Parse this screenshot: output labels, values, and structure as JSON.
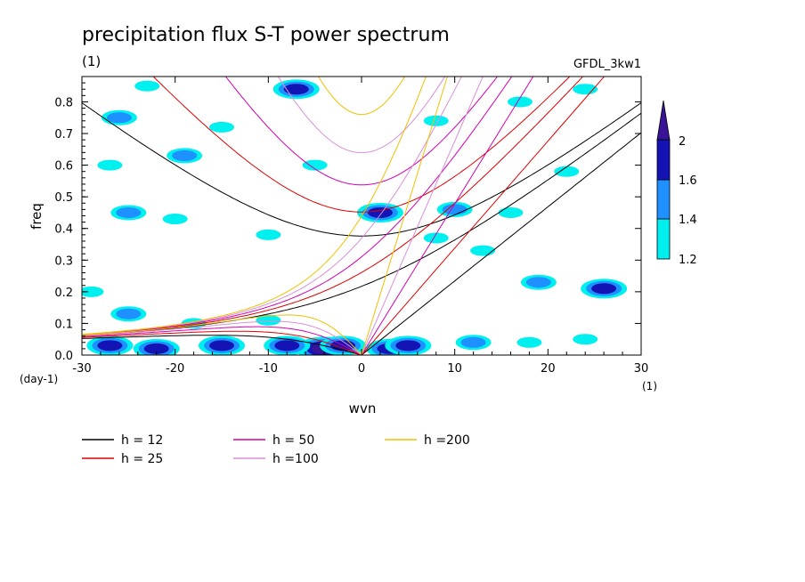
{
  "header": {
    "title": "precipitation flux S-T power spectrum",
    "unit_label": "(1)",
    "model": "GFDL_3kw1"
  },
  "chart_data": {
    "type": "heatmap",
    "title": "precipitation flux S-T power spectrum",
    "xlabel": "wvn",
    "ylabel": "freq",
    "x_unit": "(1)",
    "y_unit": "(day-1)",
    "xlim": [
      -30,
      30
    ],
    "ylim": [
      0,
      0.88
    ],
    "x_ticks": [
      -30,
      -20,
      -10,
      0,
      10,
      20,
      30
    ],
    "y_ticks": [
      0.0,
      0.1,
      0.2,
      0.3,
      0.4,
      0.5,
      0.6,
      0.7,
      0.8
    ],
    "x_tick_labels": [
      "-30",
      "-20",
      "-10",
      "0",
      "10",
      "20",
      "30"
    ],
    "y_tick_labels": [
      "0.0",
      "0.1",
      "0.2",
      "0.3",
      "0.4",
      "0.5",
      "0.6",
      "0.7",
      "0.8"
    ],
    "colorbar": {
      "levels": [
        1.2,
        1.4,
        1.6,
        2
      ],
      "labels": [
        "1.2",
        "1.4",
        "1.6",
        "2"
      ],
      "colors": [
        "#00f0f0",
        "#1e90ff",
        "#1414b4",
        "#3a1496"
      ]
    },
    "blobs": [
      {
        "x": -4,
        "y": 0.02,
        "v": 2.0
      },
      {
        "x": -2,
        "y": 0.03,
        "v": 1.8
      },
      {
        "x": 3,
        "y": 0.02,
        "v": 1.8
      },
      {
        "x": 5,
        "y": 0.03,
        "v": 1.6
      },
      {
        "x": -8,
        "y": 0.03,
        "v": 1.6
      },
      {
        "x": -15,
        "y": 0.03,
        "v": 1.6
      },
      {
        "x": -22,
        "y": 0.02,
        "v": 1.8
      },
      {
        "x": -27,
        "y": 0.03,
        "v": 1.6
      },
      {
        "x": 12,
        "y": 0.04,
        "v": 1.4
      },
      {
        "x": 18,
        "y": 0.04,
        "v": 1.3
      },
      {
        "x": 24,
        "y": 0.05,
        "v": 1.3
      },
      {
        "x": -25,
        "y": 0.13,
        "v": 1.4
      },
      {
        "x": -18,
        "y": 0.1,
        "v": 1.3
      },
      {
        "x": -10,
        "y": 0.11,
        "v": 1.3
      },
      {
        "x": 26,
        "y": 0.21,
        "v": 1.6
      },
      {
        "x": 19,
        "y": 0.23,
        "v": 1.4
      },
      {
        "x": -29,
        "y": 0.2,
        "v": 1.3
      },
      {
        "x": 13,
        "y": 0.33,
        "v": 1.3
      },
      {
        "x": 8,
        "y": 0.37,
        "v": 1.3
      },
      {
        "x": -25,
        "y": 0.45,
        "v": 1.4
      },
      {
        "x": -20,
        "y": 0.43,
        "v": 1.3
      },
      {
        "x": -10,
        "y": 0.38,
        "v": 1.3
      },
      {
        "x": 2,
        "y": 0.45,
        "v": 1.6
      },
      {
        "x": 10,
        "y": 0.46,
        "v": 1.4
      },
      {
        "x": 16,
        "y": 0.45,
        "v": 1.3
      },
      {
        "x": -19,
        "y": 0.63,
        "v": 1.4
      },
      {
        "x": -27,
        "y": 0.6,
        "v": 1.3
      },
      {
        "x": -5,
        "y": 0.6,
        "v": 1.3
      },
      {
        "x": 22,
        "y": 0.58,
        "v": 1.3
      },
      {
        "x": -26,
        "y": 0.75,
        "v": 1.4
      },
      {
        "x": -15,
        "y": 0.72,
        "v": 1.3
      },
      {
        "x": 8,
        "y": 0.74,
        "v": 1.3
      },
      {
        "x": -7,
        "y": 0.84,
        "v": 1.6
      },
      {
        "x": -23,
        "y": 0.85,
        "v": 1.3
      },
      {
        "x": 17,
        "y": 0.8,
        "v": 1.3
      },
      {
        "x": 24,
        "y": 0.84,
        "v": 1.3
      }
    ],
    "legend": [
      {
        "label": "h = 12",
        "color": "#000000"
      },
      {
        "label": "h = 25",
        "color": "#e00000"
      },
      {
        "label": "h = 50",
        "color": "#d400b0"
      },
      {
        "label": "h =100",
        "color": "#d890d8"
      },
      {
        "label": "h =200",
        "color": "#f0c000"
      }
    ],
    "dispersion_h": [
      12,
      25,
      50,
      100,
      200
    ]
  }
}
